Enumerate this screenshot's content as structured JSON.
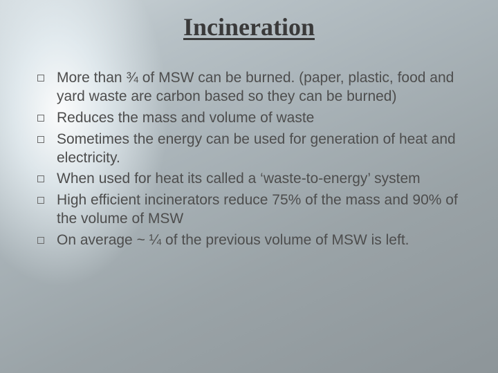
{
  "slide": {
    "title": "Incineration",
    "title_font": "Times New Roman",
    "title_fontsize": 36,
    "title_color": "#3a3a3a",
    "body_font": "Verdana",
    "body_fontsize": 21,
    "body_color": "#4d4d4d",
    "bullet_marker": "hollow-square",
    "background": {
      "type": "radial-light-burst-over-gray",
      "highlight_color": "#ffffff",
      "base_gradient": [
        "#cfd7db",
        "#b8c2c7",
        "#a9b3b8",
        "#9aa3a7",
        "#8d9599"
      ]
    },
    "bullets": [
      "More than ¾ of MSW can be burned. (paper, plastic, food and yard waste are carbon based so they can be burned)",
      "Reduces the mass and volume of waste",
      "Sometimes the energy can be used for generation of heat and electricity.",
      "When used for heat its called a ‘waste-to-energy’ system",
      "High efficient incinerators reduce 75% of the mass and 90% of the volume of MSW",
      "On average ~ ¼ of the previous volume of MSW is left."
    ]
  }
}
